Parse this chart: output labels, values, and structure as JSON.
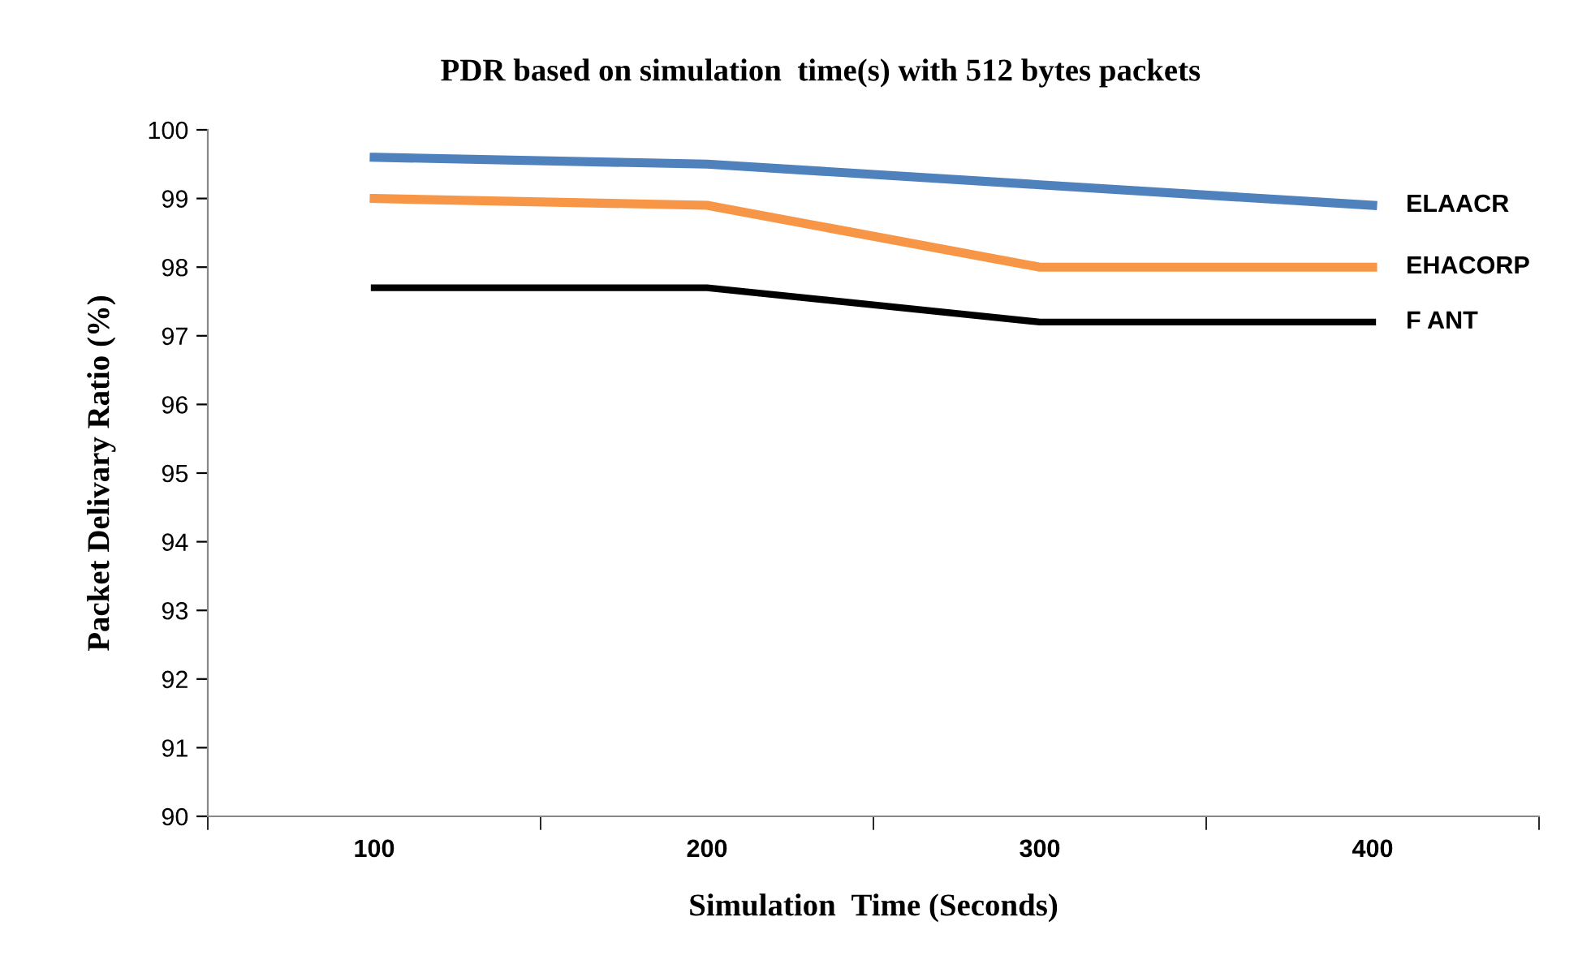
{
  "chart_data": {
    "type": "line",
    "title": "PDR based on simulation  time(s) with 512 bytes packets",
    "xlabel": "Simulation  Time (Seconds)",
    "ylabel": "Packet Delivary Ratio (%)",
    "categories": [
      "100",
      "200",
      "300",
      "400"
    ],
    "series": [
      {
        "name": "ELAACR",
        "color": "#4f81bd",
        "values": [
          99.6,
          99.5,
          99.2,
          98.9
        ]
      },
      {
        "name": "EHACORP",
        "color": "#f79646",
        "values": [
          99.0,
          98.9,
          98.0,
          98.0
        ]
      },
      {
        "name": "F ANT",
        "color": "#000000",
        "values": [
          97.7,
          97.7,
          97.2,
          97.2
        ]
      }
    ],
    "ylim": [
      90,
      100
    ],
    "yticks": [
      90,
      91,
      92,
      93,
      94,
      95,
      96,
      97,
      98,
      99,
      100
    ],
    "grid": false,
    "legend": false,
    "marker": "none",
    "line_style": "solid"
  }
}
